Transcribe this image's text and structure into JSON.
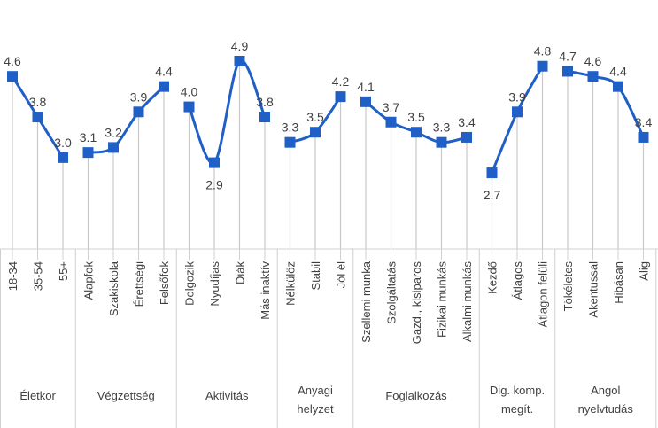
{
  "chart_data": {
    "type": "line",
    "title": "",
    "xlabel": "",
    "ylabel": "",
    "grid": false,
    "ylim": [
      0,
      5
    ],
    "marker": "square",
    "line_color": "#1F5FC6",
    "groups": [
      {
        "name": "Életkor",
        "categories": [
          "18-34",
          "35-54",
          "55+"
        ],
        "values": [
          4.6,
          3.8,
          3.0
        ],
        "labels": [
          "4.6",
          "3.8",
          "3.0"
        ]
      },
      {
        "name": "Végzettség",
        "categories": [
          "Alapfok",
          "Szakiskola",
          "Érettségi",
          "Felsőfok"
        ],
        "values": [
          3.1,
          3.2,
          3.9,
          4.4
        ],
        "labels": [
          "3.1",
          "3.2",
          "3.9",
          "4.4"
        ]
      },
      {
        "name": "Aktivitás",
        "categories": [
          "Dolgozik",
          "Nyudíjas",
          "Diák",
          "Más inaktív"
        ],
        "values": [
          4.0,
          2.9,
          4.9,
          3.8
        ],
        "labels": [
          "4.0",
          "2.9",
          "4.9",
          "3.8"
        ]
      },
      {
        "name": "Anyagi helyzet",
        "name_lines": [
          "Anyagi",
          "helyzet"
        ],
        "categories": [
          "Nélkülöz",
          "Stabil",
          "Jól él"
        ],
        "values": [
          3.3,
          3.5,
          4.2
        ],
        "labels": [
          "3.3",
          "3.5",
          "4.2"
        ]
      },
      {
        "name": "Foglalkozás",
        "categories": [
          "Szellemi munka",
          "Szolgáltatás",
          "Gazd., kisiparos",
          "Fizikai munkás",
          "Alkalmi munkás"
        ],
        "values": [
          4.1,
          3.7,
          3.5,
          3.3,
          3.4
        ],
        "labels": [
          "4.1",
          "3.7",
          "3.5",
          "3.3",
          "3.4"
        ]
      },
      {
        "name": "Dig. komp. megít.",
        "name_lines": [
          "Dig. komp.",
          "megít."
        ],
        "categories": [
          "Kezdő",
          "Átlagos",
          "Átlagon felüli"
        ],
        "values": [
          2.7,
          3.9,
          4.8
        ],
        "labels": [
          "2.7",
          "3.9",
          "4.8"
        ]
      },
      {
        "name": "Angol nyelvtudás",
        "name_lines": [
          "Angol",
          "nyelvtudás"
        ],
        "categories": [
          "Tökéletes",
          "Akentussal",
          "Hibásan",
          "Alig"
        ],
        "values": [
          4.7,
          4.6,
          4.4,
          3.4
        ],
        "labels": [
          "4.7",
          "4.6",
          "4.4",
          "3.4"
        ]
      }
    ]
  }
}
